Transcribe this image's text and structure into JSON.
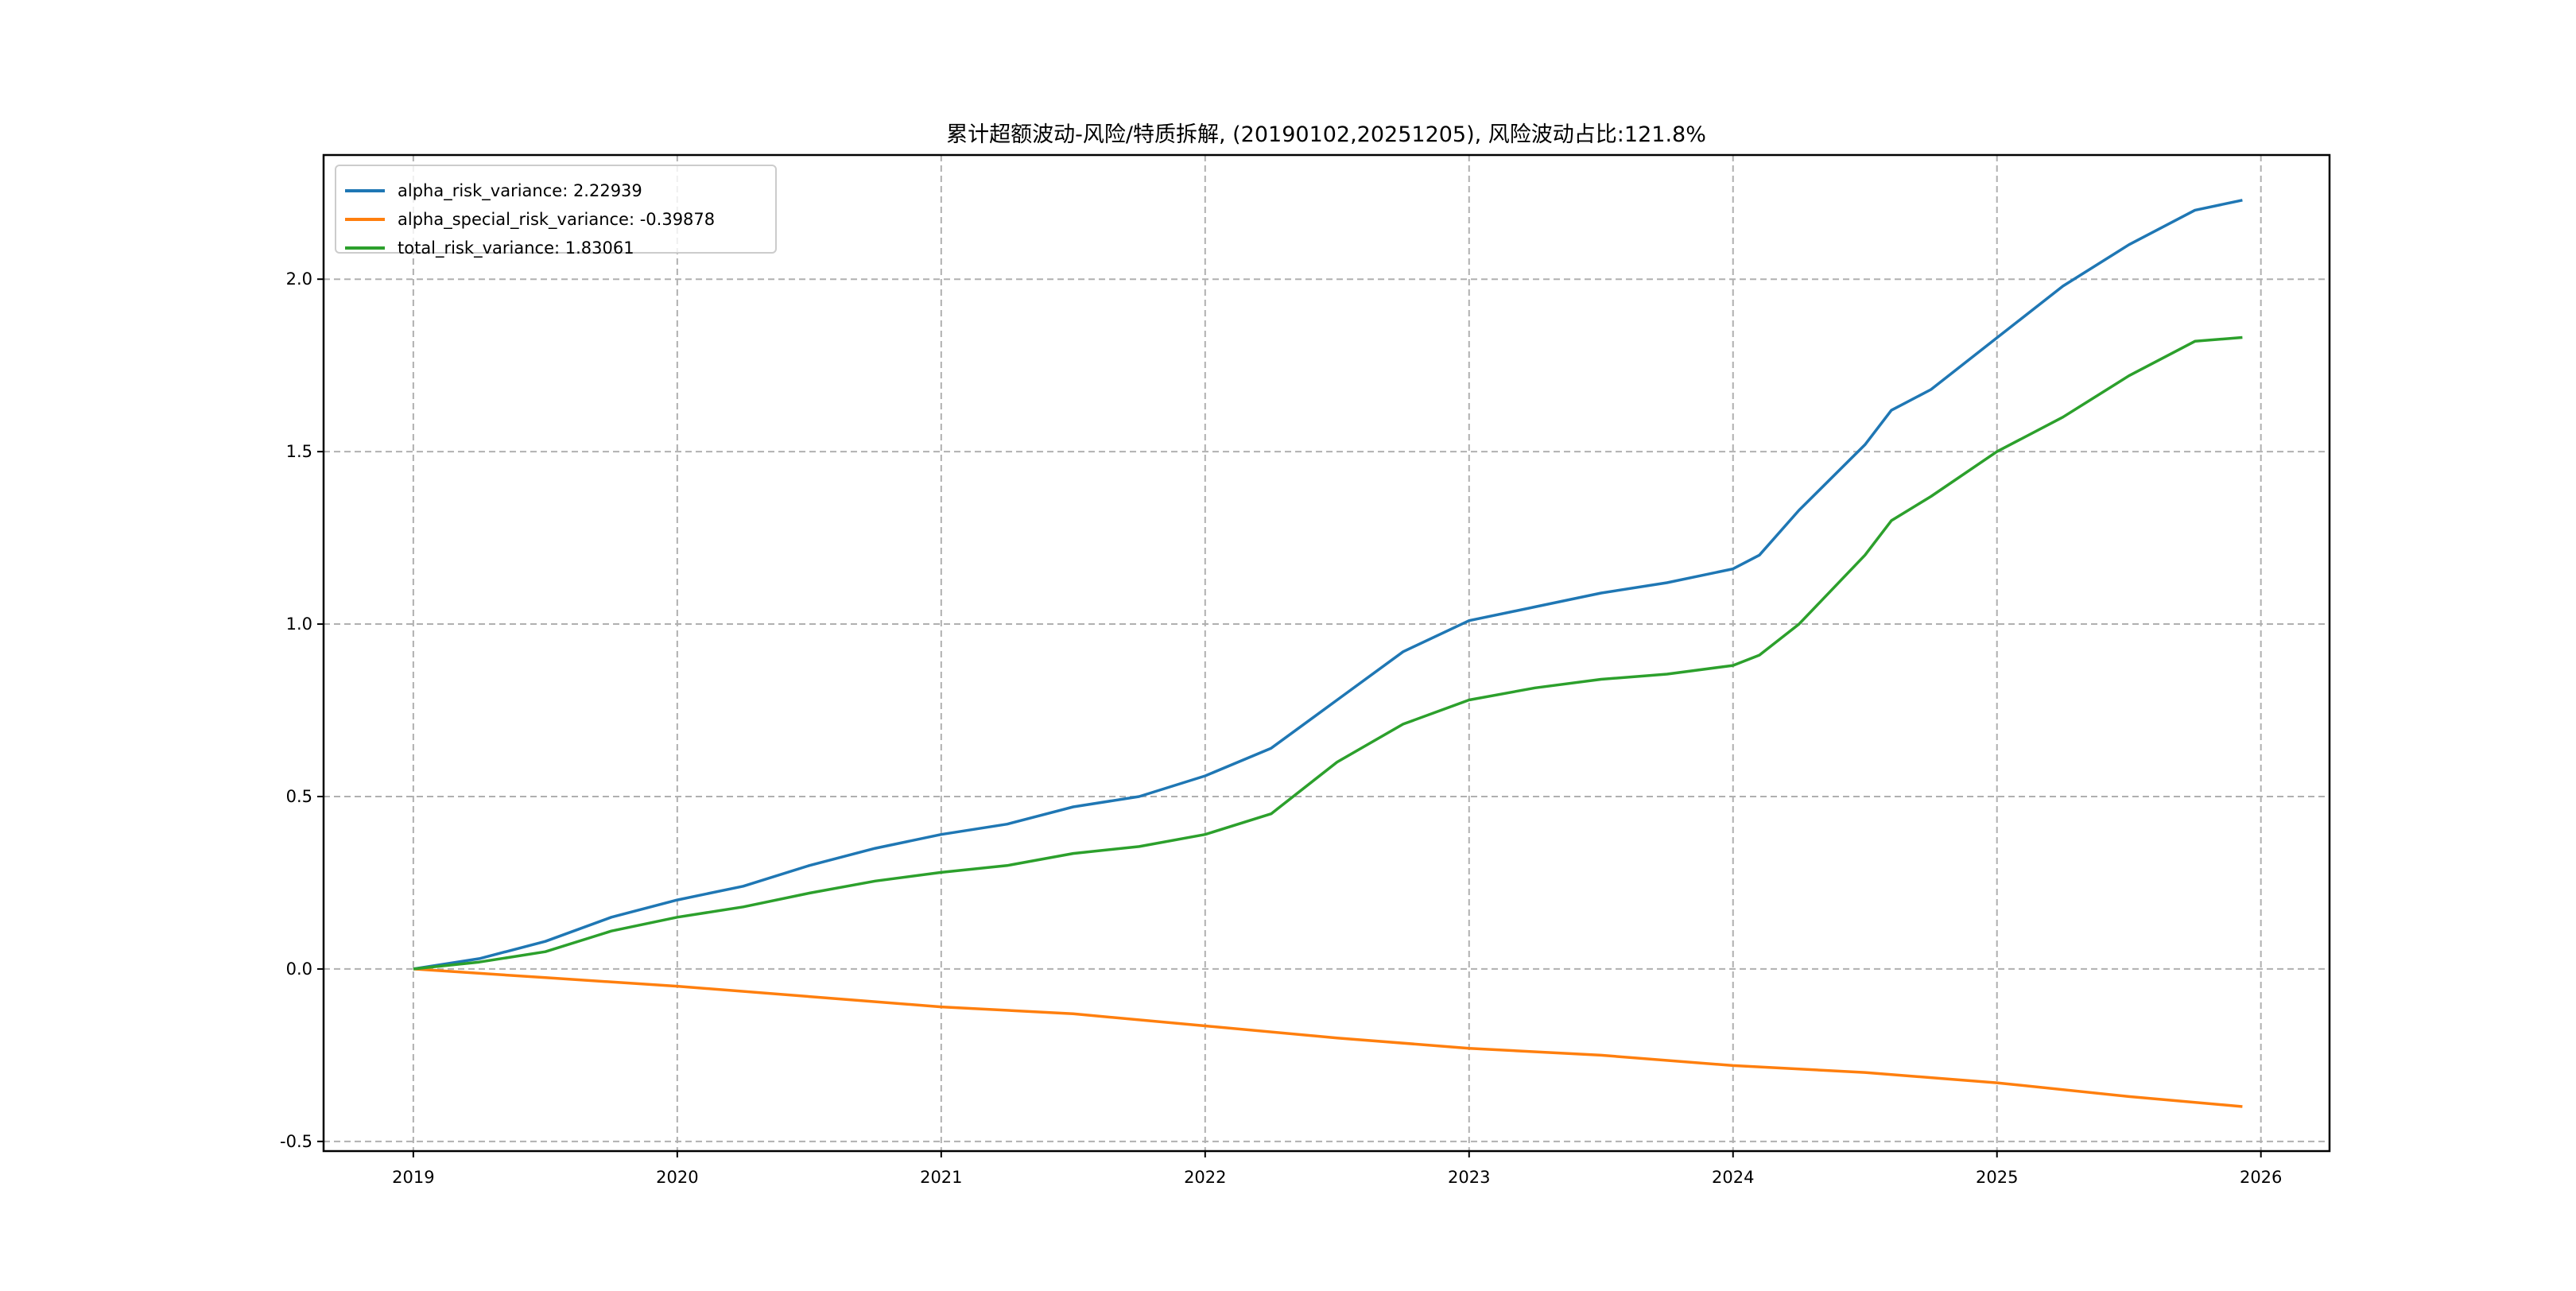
{
  "chart_data": {
    "type": "line",
    "title": "累计超额波动-风险/特质拆解, (20190102,20251205), 风险波动占比:121.8%",
    "xlabel": "",
    "ylabel": "",
    "xlim": [
      2018.66,
      2026.26
    ],
    "ylim": [
      -0.528,
      2.36
    ],
    "xticks": [
      2019,
      2020,
      2021,
      2022,
      2023,
      2024,
      2025,
      2026
    ],
    "xtick_labels": [
      "2019",
      "2020",
      "2021",
      "2022",
      "2023",
      "2024",
      "2025",
      "2026"
    ],
    "yticks": [
      -0.5,
      0.0,
      0.5,
      1.0,
      1.5,
      2.0
    ],
    "ytick_labels": [
      "-0.5",
      "0.0",
      "0.5",
      "1.0",
      "1.5",
      "2.0"
    ],
    "grid": true,
    "legend_position": "top-left",
    "series": [
      {
        "name": "alpha_risk_variance: 2.22939",
        "color": "#1f77b4",
        "x": [
          2019.0,
          2019.25,
          2019.5,
          2019.75,
          2020.0,
          2020.25,
          2020.5,
          2020.75,
          2021.0,
          2021.25,
          2021.5,
          2021.75,
          2022.0,
          2022.25,
          2022.5,
          2022.75,
          2023.0,
          2023.25,
          2023.5,
          2023.75,
          2024.0,
          2024.1,
          2024.25,
          2024.5,
          2024.6,
          2024.75,
          2025.0,
          2025.25,
          2025.5,
          2025.75,
          2025.93
        ],
        "y": [
          0.0,
          0.03,
          0.08,
          0.15,
          0.2,
          0.24,
          0.3,
          0.35,
          0.39,
          0.42,
          0.47,
          0.5,
          0.56,
          0.64,
          0.78,
          0.92,
          1.01,
          1.05,
          1.09,
          1.12,
          1.16,
          1.2,
          1.33,
          1.52,
          1.62,
          1.68,
          1.83,
          1.98,
          2.1,
          2.2,
          2.229
        ]
      },
      {
        "name": "alpha_special_risk_variance: -0.39878",
        "color": "#ff7f0e",
        "x": [
          2019.0,
          2019.5,
          2020.0,
          2020.5,
          2021.0,
          2021.5,
          2022.0,
          2022.5,
          2023.0,
          2023.5,
          2024.0,
          2024.5,
          2024.75,
          2025.0,
          2025.5,
          2025.93
        ],
        "y": [
          0.0,
          -0.025,
          -0.05,
          -0.08,
          -0.11,
          -0.13,
          -0.165,
          -0.2,
          -0.23,
          -0.25,
          -0.28,
          -0.3,
          -0.315,
          -0.33,
          -0.37,
          -0.399
        ]
      },
      {
        "name": "total_risk_variance: 1.83061",
        "color": "#2ca02c",
        "x": [
          2019.0,
          2019.25,
          2019.5,
          2019.75,
          2020.0,
          2020.25,
          2020.5,
          2020.75,
          2021.0,
          2021.25,
          2021.5,
          2021.75,
          2022.0,
          2022.25,
          2022.5,
          2022.75,
          2023.0,
          2023.25,
          2023.5,
          2023.75,
          2024.0,
          2024.1,
          2024.25,
          2024.5,
          2024.6,
          2024.75,
          2025.0,
          2025.25,
          2025.5,
          2025.75,
          2025.93
        ],
        "y": [
          0.0,
          0.02,
          0.05,
          0.11,
          0.15,
          0.18,
          0.22,
          0.255,
          0.28,
          0.3,
          0.335,
          0.355,
          0.39,
          0.45,
          0.6,
          0.71,
          0.78,
          0.815,
          0.84,
          0.855,
          0.88,
          0.91,
          1.0,
          1.2,
          1.3,
          1.37,
          1.5,
          1.6,
          1.72,
          1.82,
          1.831
        ]
      }
    ]
  }
}
